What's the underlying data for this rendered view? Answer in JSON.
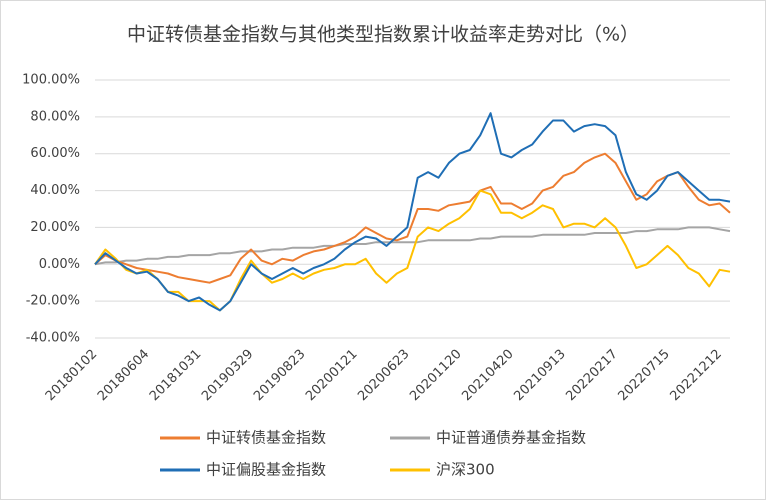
{
  "chart_data": {
    "type": "line",
    "title": "中证转债基金指数与其他类型指数累计收益率走势对比（%）",
    "categories": [
      "20180102",
      null,
      null,
      null,
      null,
      "20180604",
      null,
      null,
      null,
      null,
      "20181031",
      null,
      null,
      null,
      null,
      "20190329",
      null,
      null,
      null,
      null,
      "20190823",
      null,
      null,
      null,
      null,
      "20200121",
      null,
      null,
      null,
      null,
      "20200623",
      null,
      null,
      null,
      null,
      "20201120",
      null,
      null,
      null,
      null,
      "20210420",
      null,
      null,
      null,
      null,
      "20210913",
      null,
      null,
      null,
      null,
      "20220217",
      null,
      null,
      null,
      null,
      "20220715",
      null,
      null,
      null,
      null,
      "20221212",
      null
    ],
    "series": [
      {
        "name": "中证转债基金指数",
        "color": "#ED7D31",
        "values": [
          0,
          5,
          2,
          0,
          -2,
          -3,
          -4,
          -5,
          -7,
          -8,
          -9,
          -10,
          -8,
          -6,
          3,
          8,
          2,
          0,
          3,
          2,
          5,
          7,
          8,
          10,
          12,
          15,
          20,
          17,
          14,
          13,
          15,
          30,
          30,
          29,
          32,
          33,
          34,
          40,
          42,
          33,
          33,
          30,
          33,
          40,
          42,
          48,
          50,
          55,
          58,
          60,
          55,
          45,
          35,
          38,
          45,
          48,
          50,
          42,
          35,
          32,
          33,
          28
        ]
      },
      {
        "name": "中证普通债券基金指数",
        "color": "#A5A5A5",
        "values": [
          0,
          1,
          1,
          2,
          2,
          3,
          3,
          4,
          4,
          5,
          5,
          5,
          6,
          6,
          7,
          7,
          7,
          8,
          8,
          9,
          9,
          9,
          10,
          10,
          11,
          11,
          11,
          12,
          12,
          12,
          12,
          12,
          13,
          13,
          13,
          13,
          13,
          14,
          14,
          15,
          15,
          15,
          15,
          16,
          16,
          16,
          16,
          16,
          17,
          17,
          17,
          17,
          18,
          18,
          19,
          19,
          19,
          20,
          20,
          20,
          19,
          18
        ]
      },
      {
        "name": "中证偏股基金指数",
        "color": "#1F6EB5",
        "values": [
          0,
          6,
          2,
          -2,
          -5,
          -4,
          -8,
          -15,
          -17,
          -20,
          -18,
          -22,
          -25,
          -20,
          -10,
          0,
          -5,
          -8,
          -5,
          -2,
          -5,
          -2,
          0,
          3,
          8,
          12,
          15,
          14,
          10,
          15,
          20,
          47,
          50,
          47,
          55,
          60,
          62,
          70,
          82,
          60,
          58,
          62,
          65,
          72,
          78,
          78,
          72,
          75,
          76,
          75,
          70,
          50,
          38,
          35,
          40,
          48,
          50,
          45,
          40,
          35,
          35,
          34
        ]
      },
      {
        "name": "沪深300",
        "color": "#FFC000",
        "values": [
          0,
          8,
          3,
          -3,
          -5,
          -3,
          -8,
          -15,
          -15,
          -20,
          -20,
          -20,
          -25,
          -20,
          -8,
          2,
          -5,
          -10,
          -8,
          -5,
          -8,
          -5,
          -3,
          -2,
          0,
          0,
          3,
          -5,
          -10,
          -5,
          -2,
          15,
          20,
          18,
          22,
          25,
          30,
          40,
          38,
          28,
          28,
          25,
          28,
          32,
          30,
          20,
          22,
          22,
          20,
          25,
          20,
          10,
          -2,
          0,
          5,
          10,
          5,
          -2,
          -5,
          -12,
          -3,
          -4
        ]
      }
    ],
    "ylim": [
      -40,
      100
    ],
    "yticks": [
      {
        "value": -40,
        "label": "-40.00%"
      },
      {
        "value": -20,
        "label": "-20.00%"
      },
      {
        "value": 0,
        "label": "0.00%"
      },
      {
        "value": 20,
        "label": "20.00%"
      },
      {
        "value": 40,
        "label": "40.00%"
      },
      {
        "value": 60,
        "label": "60.00%"
      },
      {
        "value": 80,
        "label": "80.00%"
      },
      {
        "value": 100,
        "label": "100.00%"
      }
    ],
    "grid": true,
    "legend": "bottom"
  }
}
